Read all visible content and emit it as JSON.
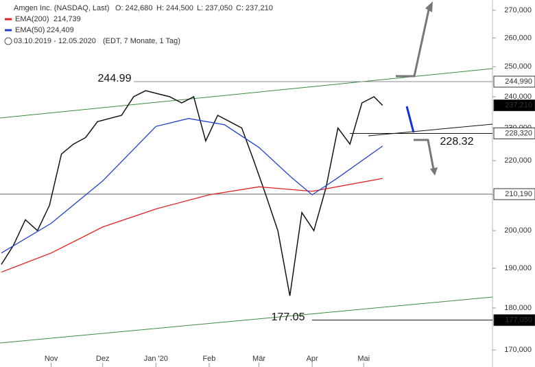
{
  "chart_data": {
    "type": "line",
    "title": "Amgen Inc. (NASDAQ, Last)",
    "ohlc": [
      "O: 242,680",
      "H: 244,500",
      "L: 237,050",
      "C: 237,210"
    ],
    "period": "03.10.2019 - 12.05.2020",
    "period_note": "(EDT, 7 Monate, 1 Tag)",
    "log_scale": true,
    "ylim": [
      166.1,
      273.8
    ],
    "yticks": [
      {
        "value": 170,
        "label": "170,000"
      },
      {
        "value": 180,
        "label": "180,000"
      },
      {
        "value": 190,
        "label": "190,000"
      },
      {
        "value": 200,
        "label": "200,000"
      },
      {
        "value": 210,
        "label": "210,000"
      },
      {
        "value": 220,
        "label": "220,000"
      },
      {
        "value": 230,
        "label": "230,000"
      },
      {
        "value": 240,
        "label": "240,000"
      },
      {
        "value": 250,
        "label": "250,000"
      },
      {
        "value": 260,
        "label": "260,000"
      },
      {
        "value": 270,
        "label": "270,000"
      }
    ],
    "xlim": [
      "2019-10-03",
      "2020-07-15"
    ],
    "xticks": [
      {
        "value": "2019-11-01",
        "label": "Nov"
      },
      {
        "value": "2019-12-01",
        "label": "Dez"
      },
      {
        "value": "2020-01-01",
        "label": "Jan '20"
      },
      {
        "value": "2020-02-01",
        "label": "Feb"
      },
      {
        "value": "2020-03-01",
        "label": "Mär"
      },
      {
        "value": "2020-04-01",
        "label": "Apr"
      },
      {
        "value": "2020-05-01",
        "label": "Mai"
      }
    ],
    "series": [
      {
        "name": "Amgen Inc. (NASDAQ, Last)",
        "color": "#111111",
        "x": [
          "2019-10-03",
          "2019-10-10",
          "2019-10-17",
          "2019-10-24",
          "2019-10-31",
          "2019-11-07",
          "2019-11-14",
          "2019-11-21",
          "2019-11-28",
          "2019-12-05",
          "2019-12-12",
          "2019-12-19",
          "2019-12-26",
          "2020-01-02",
          "2020-01-09",
          "2020-01-16",
          "2020-01-23",
          "2020-01-30",
          "2020-02-06",
          "2020-02-13",
          "2020-02-20",
          "2020-02-27",
          "2020-03-05",
          "2020-03-12",
          "2020-03-19",
          "2020-03-26",
          "2020-04-02",
          "2020-04-09",
          "2020-04-16",
          "2020-04-23",
          "2020-04-30",
          "2020-05-07",
          "2020-05-12"
        ],
        "values": [
          191,
          196,
          203,
          200,
          207,
          222,
          225,
          227,
          232,
          233,
          234,
          240,
          242,
          241,
          240,
          238,
          240,
          226,
          234,
          232,
          230,
          220,
          210,
          200,
          183,
          205,
          200,
          212,
          230,
          225,
          238,
          240,
          237.21
        ]
      },
      {
        "name": "EMA(200)",
        "last_label": "214,739",
        "color": "#e02020",
        "x": [
          "2019-10-03",
          "2019-11-01",
          "2019-12-01",
          "2020-01-01",
          "2020-02-01",
          "2020-03-01",
          "2020-04-01",
          "2020-05-12"
        ],
        "values": [
          189,
          194,
          201,
          206,
          210,
          212.3,
          211,
          214.739
        ]
      },
      {
        "name": "EMA(50)",
        "last_label": "224,409",
        "color": "#2040d0",
        "x": [
          "2019-10-03",
          "2019-11-01",
          "2019-12-01",
          "2020-01-01",
          "2020-01-20",
          "2020-02-10",
          "2020-03-01",
          "2020-03-20",
          "2020-04-01",
          "2020-04-15",
          "2020-05-12"
        ],
        "values": [
          194,
          202,
          214,
          230.5,
          233,
          231,
          224,
          215,
          210,
          214.6,
          224.409
        ]
      }
    ],
    "price_levels": [
      {
        "value": 244.99,
        "label": "244,990",
        "annotation": "244.99",
        "fill": "#ffffff"
      },
      {
        "value": 237.21,
        "label": "237,210",
        "fill": "#000000"
      },
      {
        "value": 228.32,
        "label": "228,320",
        "annotation": "228.32",
        "fill": "#ffffff"
      },
      {
        "value": 210.19,
        "label": "210,190",
        "fill": "#ffffff"
      },
      {
        "value": 177.05,
        "label": "177,050",
        "annotation": "177.05",
        "fill": "#000000"
      }
    ]
  }
}
